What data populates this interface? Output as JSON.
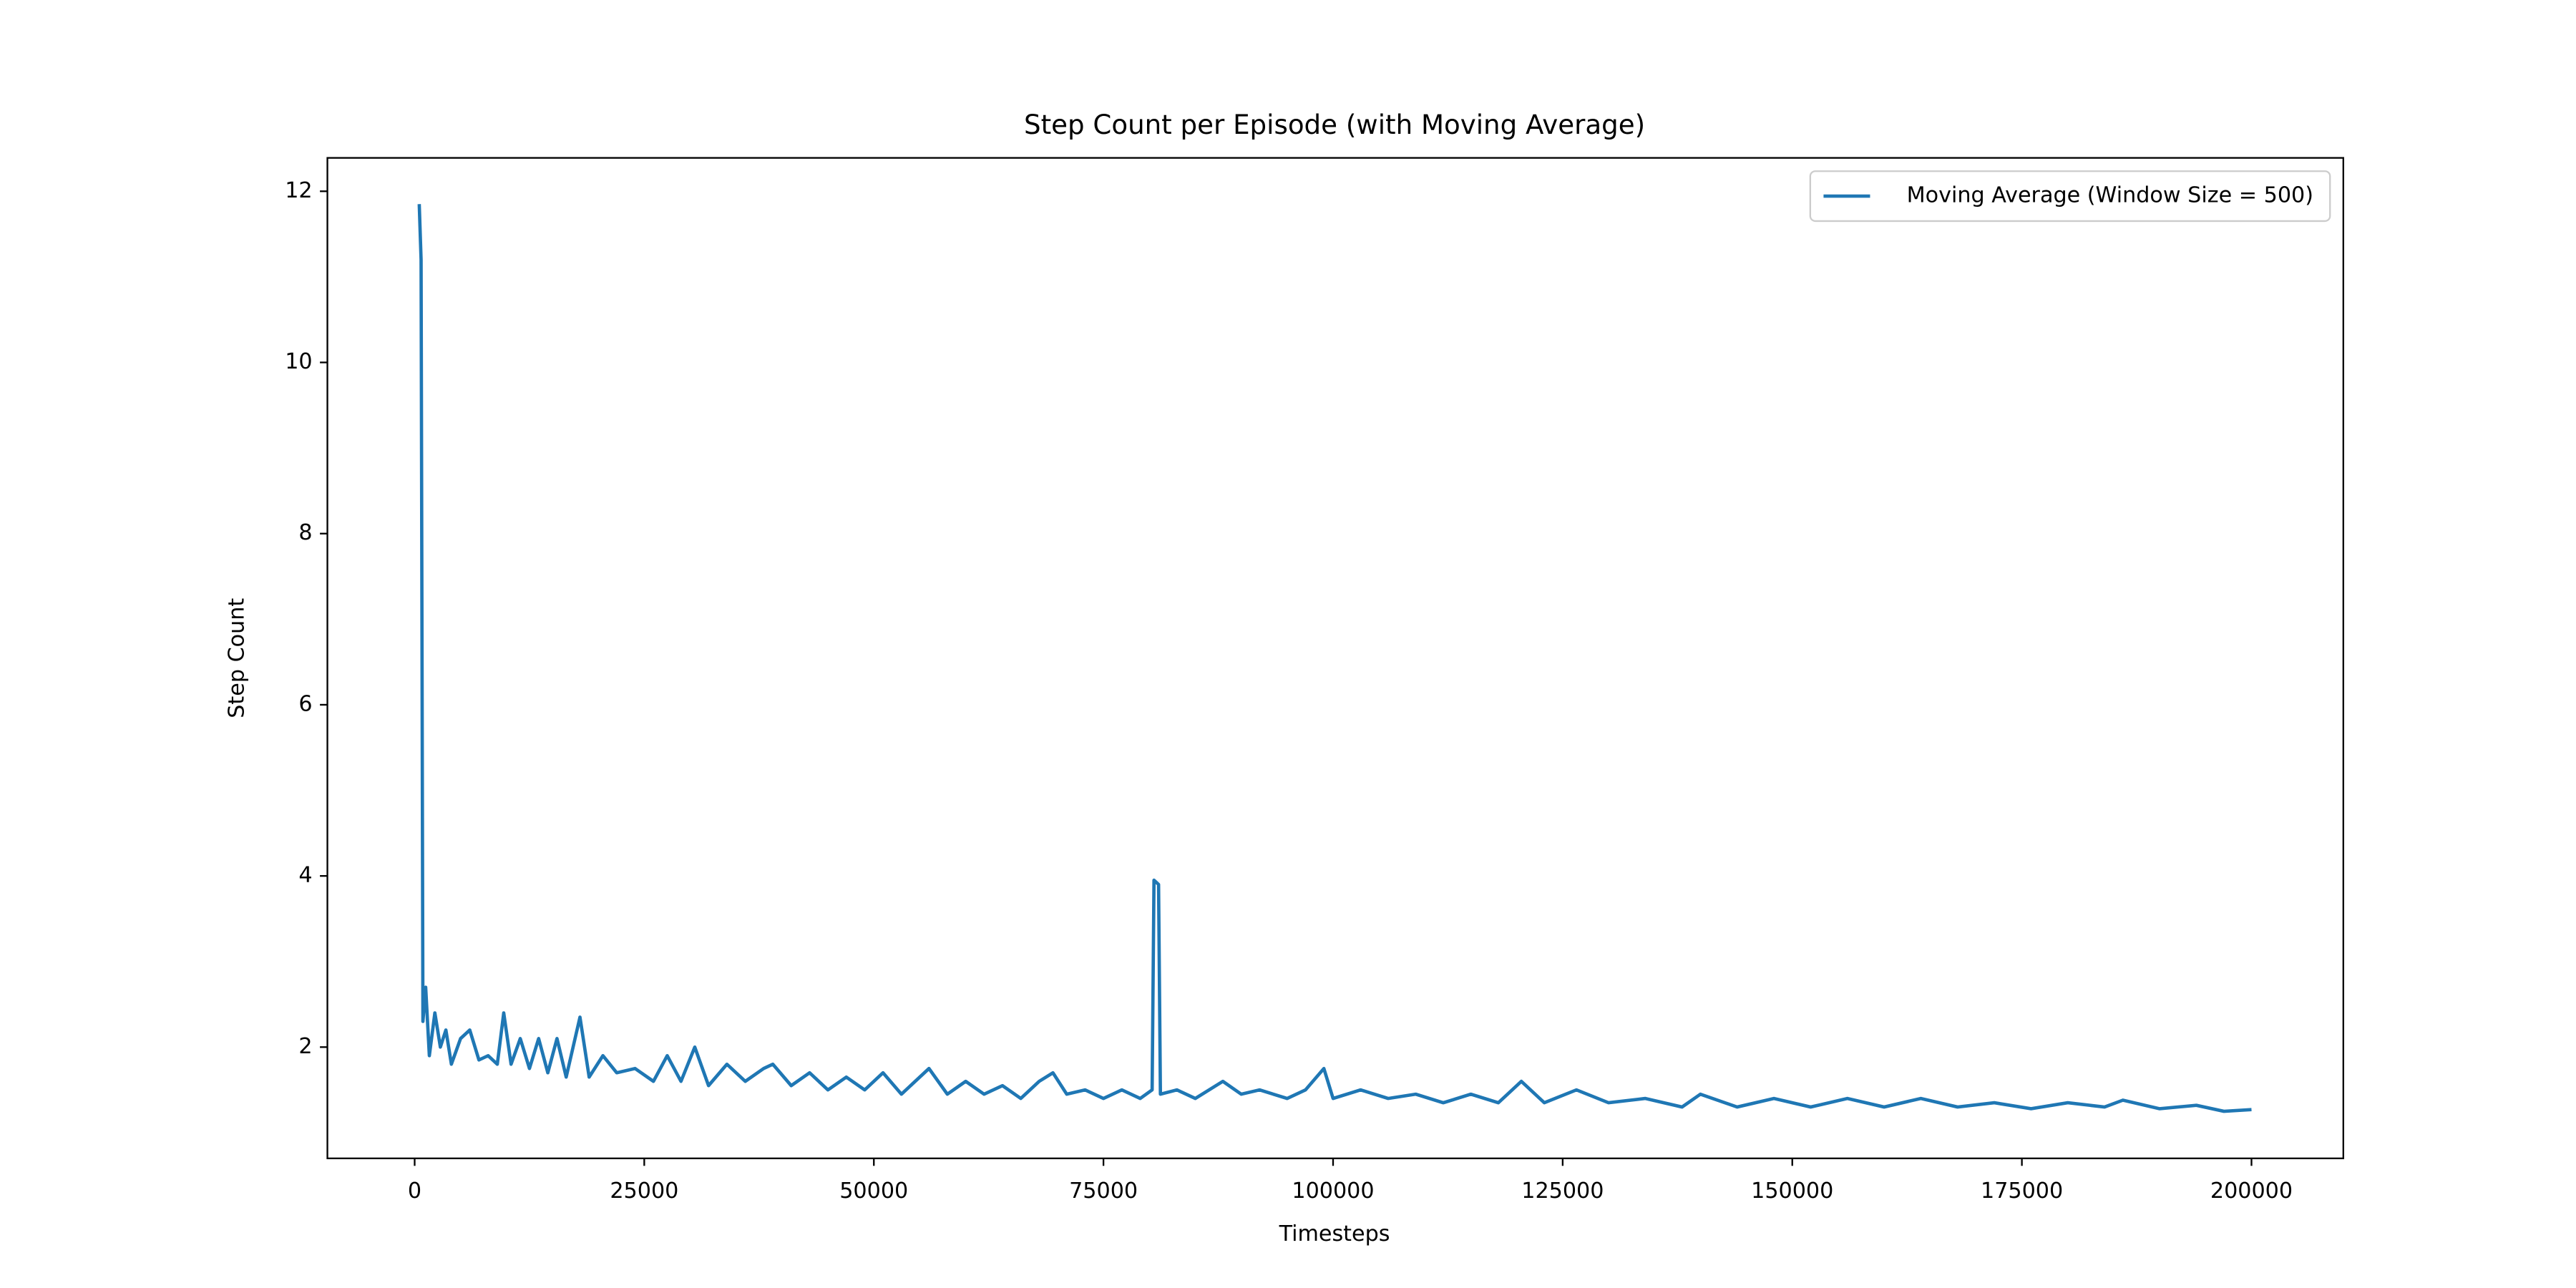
{
  "chart_data": {
    "type": "line",
    "title": "Step Count per Episode (with Moving Average)",
    "xlabel": "Timesteps",
    "ylabel": "Step Count",
    "x": [
      500,
      700,
      900,
      1200,
      1600,
      2200,
      2800,
      3400,
      4000,
      5000,
      6000,
      7000,
      8000,
      9000,
      9700,
      10500,
      11500,
      12500,
      13500,
      14500,
      15500,
      16500,
      18000,
      19000,
      20500,
      22000,
      24000,
      26000,
      27500,
      29000,
      30500,
      32000,
      34000,
      36000,
      38000,
      39000,
      41000,
      43000,
      45000,
      47000,
      49000,
      51000,
      53000,
      56000,
      58000,
      60000,
      62000,
      64000,
      66000,
      68000,
      69500,
      71000,
      73000,
      75000,
      77000,
      79000,
      80300,
      80500,
      81000,
      81200,
      83000,
      85000,
      88000,
      90000,
      92000,
      95000,
      97000,
      99000,
      100000,
      103000,
      106000,
      109000,
      112000,
      115000,
      118000,
      120500,
      123000,
      126500,
      130000,
      134000,
      138000,
      140000,
      144000,
      148000,
      152000,
      156000,
      160000,
      164000,
      168000,
      172000,
      176000,
      180000,
      184000,
      186000,
      190000,
      194000,
      197000,
      200000
    ],
    "series": [
      {
        "name": "Moving Average (Window Size = 500)",
        "color": "#1f77b4",
        "values": [
          11.85,
          11.2,
          2.3,
          2.7,
          1.9,
          2.4,
          2.0,
          2.2,
          1.8,
          2.1,
          2.2,
          1.85,
          1.9,
          1.8,
          2.4,
          1.8,
          2.1,
          1.75,
          2.1,
          1.7,
          2.1,
          1.65,
          2.35,
          1.65,
          1.9,
          1.7,
          1.75,
          1.6,
          1.9,
          1.6,
          2.0,
          1.55,
          1.8,
          1.6,
          1.75,
          1.8,
          1.55,
          1.7,
          1.5,
          1.65,
          1.5,
          1.7,
          1.45,
          1.75,
          1.45,
          1.6,
          1.45,
          1.55,
          1.4,
          1.6,
          1.7,
          1.45,
          1.5,
          1.4,
          1.5,
          1.4,
          1.5,
          3.95,
          3.9,
          1.45,
          1.5,
          1.4,
          1.6,
          1.45,
          1.5,
          1.4,
          1.5,
          1.75,
          1.4,
          1.5,
          1.4,
          1.45,
          1.35,
          1.45,
          1.35,
          1.6,
          1.35,
          1.5,
          1.35,
          1.4,
          1.3,
          1.45,
          1.3,
          1.4,
          1.3,
          1.4,
          1.3,
          1.4,
          1.3,
          1.35,
          1.28,
          1.35,
          1.3,
          1.38,
          1.28,
          1.32,
          1.25,
          1.27
        ]
      }
    ],
    "xlim": [
      -9500,
      210000
    ],
    "ylim": [
      0.7,
      12.39
    ],
    "xticks": [
      0,
      25000,
      50000,
      75000,
      100000,
      125000,
      150000,
      175000,
      200000
    ],
    "yticks": [
      2,
      4,
      6,
      8,
      10,
      12
    ],
    "legend": "upper right"
  }
}
